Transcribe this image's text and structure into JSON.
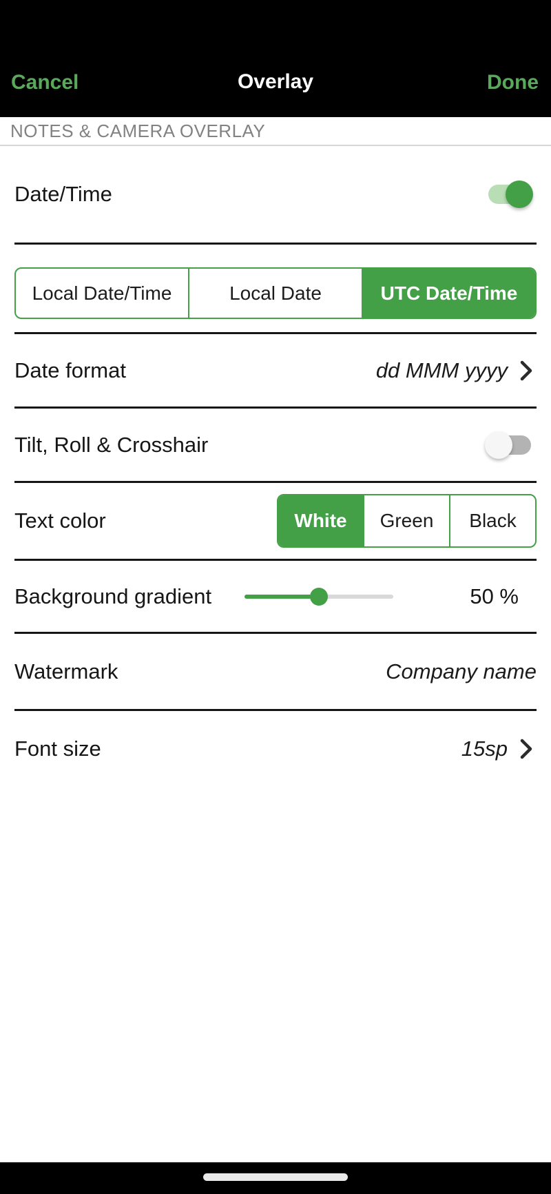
{
  "header": {
    "cancel_label": "Cancel",
    "title": "Overlay",
    "done_label": "Done"
  },
  "section": {
    "title": "NOTES & CAMERA OVERLAY"
  },
  "rows": {
    "date_time": {
      "label": "Date/Time",
      "enabled": true
    },
    "date_type": {
      "options": [
        "Local Date/Time",
        "Local Date",
        "UTC Date/Time"
      ],
      "selected": "UTC Date/Time"
    },
    "date_format": {
      "label": "Date format",
      "value": "dd MMM yyyy",
      "trailing_icon": "chevron-right-icon"
    },
    "tilt_roll_crosshair": {
      "label": "Tilt, Roll & Crosshair",
      "enabled": false
    },
    "text_color": {
      "label": "Text color",
      "options": [
        "White",
        "Green",
        "Black"
      ],
      "selected": "White"
    },
    "background_gradient": {
      "label": "Background gradient",
      "percent": 50,
      "value_label": "50 %"
    },
    "watermark": {
      "label": "Watermark",
      "value": "Company name"
    },
    "font_size": {
      "label": "Font size",
      "value": "15sp",
      "trailing_icon": "chevron-right-icon"
    }
  },
  "colors": {
    "accent_green": "#43a047",
    "header_text_green": "#5aa85c",
    "switch_on_track": "#b9ddb4",
    "switch_off_track": "#b3b3b3",
    "switch_off_thumb": "#f6f6f6",
    "slider_inactive": "#d9d9d9",
    "divider": "#161616",
    "section_text": "#828282",
    "header_background": "#000000"
  }
}
